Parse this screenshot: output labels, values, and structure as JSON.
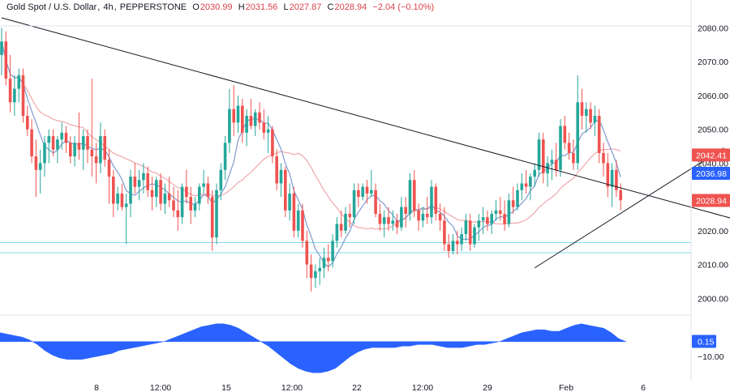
{
  "header": {
    "symbol": "Gold Spot / U.S. Dollar",
    "interval": "4h",
    "source": "PEPPERSTONE",
    "open_label": "O",
    "open": "2030.99",
    "high_label": "H",
    "high": "2031.56",
    "low_label": "L",
    "low": "2027.87",
    "close_label": "C",
    "close": "2028.94",
    "change": "−2.04 (−0.10%)"
  },
  "colors": {
    "up": "#26a69a",
    "down": "#ef5350",
    "slow_ma": "#f0a7ac",
    "fast_ma": "#7e9bcf",
    "oscillator": "#2962ff",
    "trendline": "#131722",
    "support_zone": "#80deea"
  },
  "chart_data": [
    {
      "type": "candlestick",
      "symbol": "XAUUSD",
      "timeframe": "4h",
      "y_axis": {
        "ticks": [
          2000,
          2010,
          2020,
          2030,
          2040,
          2050,
          2060,
          2070,
          2080
        ],
        "ylim": [
          1996,
          2083
        ]
      },
      "x_axis": {
        "ticks": [
          "8",
          "12:00",
          "15",
          "12:00",
          "22",
          "12:00",
          "29",
          "Feb",
          "6"
        ]
      },
      "price_labels": [
        {
          "label": "2042.41",
          "value": 2042.41,
          "color": "#ef5350"
        },
        {
          "label": "2036.98",
          "value": 2036.98,
          "color": "#2962ff"
        },
        {
          "label": "2028.94",
          "value": 2028.94,
          "color": "#ef5350"
        }
      ],
      "support_lines": [
        2016.5,
        2013.5
      ],
      "trendlines": [
        {
          "name": "descending",
          "from": [
            0,
            2083
          ],
          "to": [
            186,
            2018
          ]
        },
        {
          "name": "ascending",
          "from": [
            124,
            2009
          ],
          "to": [
            168,
            2044.5
          ]
        }
      ],
      "candles_ohlc": [
        [
          2072,
          2080,
          2066,
          2076
        ],
        [
          2076,
          2079,
          2063,
          2065
        ],
        [
          2065,
          2072,
          2055,
          2058
        ],
        [
          2058,
          2066,
          2054,
          2062
        ],
        [
          2062,
          2068,
          2058,
          2066
        ],
        [
          2066,
          2068,
          2052,
          2054
        ],
        [
          2054,
          2057,
          2048,
          2050
        ],
        [
          2050,
          2053,
          2040,
          2042
        ],
        [
          2042,
          2047,
          2030,
          2038
        ],
        [
          2038,
          2044,
          2031,
          2040
        ],
        [
          2040,
          2048,
          2036,
          2046
        ],
        [
          2046,
          2050,
          2040,
          2048
        ],
        [
          2048,
          2050,
          2042,
          2044
        ],
        [
          2044,
          2048,
          2040,
          2047
        ],
        [
          2047,
          2052,
          2044,
          2049
        ],
        [
          2049,
          2051,
          2043,
          2046
        ],
        [
          2046,
          2048,
          2040,
          2042
        ],
        [
          2042,
          2048,
          2039,
          2046
        ],
        [
          2046,
          2055,
          2041,
          2044
        ],
        [
          2044,
          2050,
          2038,
          2048
        ],
        [
          2048,
          2050,
          2040,
          2044
        ],
        [
          2044,
          2065,
          2036,
          2042
        ],
        [
          2042,
          2046,
          2034,
          2040
        ],
        [
          2040,
          2052,
          2037,
          2048
        ],
        [
          2048,
          2050,
          2039,
          2041
        ],
        [
          2041,
          2044,
          2028,
          2036
        ],
        [
          2036,
          2038,
          2024,
          2028
        ],
        [
          2028,
          2033,
          2026,
          2031
        ],
        [
          2031,
          2034,
          2026,
          2027
        ],
        [
          2027,
          2031,
          2016,
          2028
        ],
        [
          2028,
          2038,
          2024,
          2036
        ],
        [
          2036,
          2040,
          2031,
          2033
        ],
        [
          2033,
          2038,
          2029,
          2035
        ],
        [
          2035,
          2040,
          2031,
          2037
        ],
        [
          2037,
          2039,
          2030,
          2032
        ],
        [
          2032,
          2036,
          2026,
          2030
        ],
        [
          2030,
          2036,
          2027,
          2035
        ],
        [
          2035,
          2037,
          2026,
          2028
        ],
        [
          2028,
          2034,
          2025,
          2031
        ],
        [
          2031,
          2036,
          2027,
          2029
        ],
        [
          2029,
          2033,
          2024,
          2026
        ],
        [
          2026,
          2032,
          2020,
          2024
        ],
        [
          2024,
          2034,
          2022,
          2033
        ],
        [
          2033,
          2038,
          2028,
          2030
        ],
        [
          2030,
          2033,
          2022,
          2026
        ],
        [
          2026,
          2030,
          2024,
          2028
        ],
        [
          2028,
          2034,
          2026,
          2033
        ],
        [
          2033,
          2038,
          2031,
          2034
        ],
        [
          2034,
          2036,
          2028,
          2030
        ],
        [
          2030,
          2032,
          2014,
          2018
        ],
        [
          2018,
          2034,
          2016,
          2032
        ],
        [
          2032,
          2040,
          2029,
          2038
        ],
        [
          2038,
          2048,
          2035,
          2046
        ],
        [
          2046,
          2062,
          2043,
          2056
        ],
        [
          2056,
          2063,
          2048,
          2052
        ],
        [
          2052,
          2060,
          2049,
          2057
        ],
        [
          2057,
          2059,
          2046,
          2049
        ],
        [
          2049,
          2056,
          2045,
          2054
        ],
        [
          2054,
          2059,
          2050,
          2051
        ],
        [
          2051,
          2056,
          2048,
          2055
        ],
        [
          2055,
          2058,
          2050,
          2052
        ],
        [
          2052,
          2056,
          2047,
          2049
        ],
        [
          2049,
          2054,
          2043,
          2050
        ],
        [
          2050,
          2051,
          2040,
          2042
        ],
        [
          2042,
          2044,
          2032,
          2034
        ],
        [
          2034,
          2040,
          2030,
          2038
        ],
        [
          2038,
          2039,
          2024,
          2026
        ],
        [
          2026,
          2034,
          2023,
          2031
        ],
        [
          2031,
          2033,
          2018,
          2020
        ],
        [
          2020,
          2028,
          2018,
          2026
        ],
        [
          2026,
          2028,
          2015,
          2017
        ],
        [
          2017,
          2020,
          2006,
          2010
        ],
        [
          2010,
          2013,
          2002,
          2006
        ],
        [
          2006,
          2010,
          2003,
          2008
        ],
        [
          2008,
          2012,
          2004,
          2009
        ],
        [
          2009,
          2015,
          2006,
          2012
        ],
        [
          2012,
          2016,
          2008,
          2011
        ],
        [
          2011,
          2019,
          2009,
          2017
        ],
        [
          2017,
          2024,
          2015,
          2022
        ],
        [
          2022,
          2026,
          2018,
          2020
        ],
        [
          2020,
          2027,
          2019,
          2025
        ],
        [
          2025,
          2028,
          2021,
          2024
        ],
        [
          2024,
          2034,
          2022,
          2032
        ],
        [
          2032,
          2034,
          2027,
          2030
        ],
        [
          2030,
          2034,
          2029,
          2033
        ],
        [
          2033,
          2035,
          2028,
          2031
        ],
        [
          2031,
          2038,
          2030,
          2032
        ],
        [
          2032,
          2034,
          2024,
          2025
        ],
        [
          2025,
          2028,
          2020,
          2022
        ],
        [
          2022,
          2026,
          2018,
          2024
        ],
        [
          2024,
          2027,
          2020,
          2022
        ],
        [
          2022,
          2026,
          2020,
          2023
        ],
        [
          2023,
          2025,
          2019,
          2021
        ],
        [
          2021,
          2030,
          2020,
          2027
        ],
        [
          2027,
          2030,
          2021,
          2025
        ],
        [
          2025,
          2037,
          2023,
          2035
        ],
        [
          2035,
          2038,
          2024,
          2026
        ],
        [
          2026,
          2028,
          2020,
          2023
        ],
        [
          2023,
          2027,
          2021,
          2025
        ],
        [
          2025,
          2030,
          2022,
          2024
        ],
        [
          2024,
          2035,
          2022,
          2033
        ],
        [
          2033,
          2034,
          2023,
          2025
        ],
        [
          2025,
          2028,
          2020,
          2023
        ],
        [
          2023,
          2027,
          2014,
          2016
        ],
        [
          2016,
          2019,
          2012,
          2014
        ],
        [
          2014,
          2019,
          2013,
          2017
        ],
        [
          2017,
          2020,
          2013,
          2016
        ],
        [
          2016,
          2021,
          2014,
          2019
        ],
        [
          2019,
          2025,
          2017,
          2023
        ],
        [
          2023,
          2025,
          2014,
          2016
        ],
        [
          2016,
          2022,
          2015,
          2021
        ],
        [
          2021,
          2025,
          2017,
          2023
        ],
        [
          2023,
          2027,
          2019,
          2024
        ],
        [
          2024,
          2026,
          2020,
          2022
        ],
        [
          2022,
          2026,
          2019,
          2025
        ],
        [
          2025,
          2029,
          2023,
          2026
        ],
        [
          2026,
          2030,
          2023,
          2025
        ],
        [
          2025,
          2029,
          2020,
          2022
        ],
        [
          2022,
          2031,
          2021,
          2029
        ],
        [
          2029,
          2033,
          2025,
          2027
        ],
        [
          2027,
          2034,
          2026,
          2032
        ],
        [
          2032,
          2037,
          2029,
          2034
        ],
        [
          2034,
          2038,
          2031,
          2033
        ],
        [
          2033,
          2037,
          2029,
          2036
        ],
        [
          2036,
          2040,
          2033,
          2038
        ],
        [
          2038,
          2049,
          2036,
          2047
        ],
        [
          2047,
          2049,
          2034,
          2037
        ],
        [
          2037,
          2042,
          2033,
          2040
        ],
        [
          2040,
          2044,
          2035,
          2041
        ],
        [
          2041,
          2046,
          2036,
          2038
        ],
        [
          2038,
          2053,
          2036,
          2051
        ],
        [
          2051,
          2054,
          2044,
          2046
        ],
        [
          2046,
          2049,
          2041,
          2043
        ],
        [
          2043,
          2047,
          2038,
          2040
        ],
        [
          2040,
          2066,
          2038,
          2058
        ],
        [
          2058,
          2062,
          2050,
          2054
        ],
        [
          2054,
          2058,
          2049,
          2056
        ],
        [
          2056,
          2058,
          2050,
          2052
        ],
        [
          2052,
          2057,
          2048,
          2054
        ],
        [
          2054,
          2056,
          2040,
          2043
        ],
        [
          2043,
          2046,
          2036,
          2040
        ],
        [
          2040,
          2043,
          2030,
          2033
        ],
        [
          2033,
          2040,
          2027,
          2038
        ],
        [
          2038,
          2041,
          2030,
          2032
        ],
        [
          2032,
          2034,
          2026,
          2029
        ]
      ]
    },
    {
      "type": "area",
      "name": "oscillator",
      "value_labels": [
        {
          "label": "0.15",
          "value": 0.15,
          "color": "#2962ff"
        },
        {
          "label": "−10.00",
          "value": -10.0
        }
      ],
      "values": [
        6,
        5,
        4,
        3,
        1,
        -2,
        -6,
        -9,
        -11,
        -12,
        -12,
        -12,
        -11,
        -10,
        -9,
        -8,
        -6,
        -5,
        -4,
        -3,
        -2,
        -1,
        0,
        2,
        4,
        6,
        8,
        10,
        11,
        12,
        12,
        11,
        9,
        6,
        3,
        0,
        -3,
        -7,
        -11,
        -15,
        -18,
        -20,
        -21,
        -21,
        -20,
        -18,
        -14,
        -10,
        -7,
        -5,
        -4,
        -4,
        -4,
        -4,
        -3,
        -3,
        -2,
        -2,
        -2,
        -3,
        -4,
        -4,
        -4,
        -3,
        -2,
        -2,
        -1,
        0,
        2,
        4,
        6,
        7,
        8,
        8,
        7,
        7,
        9,
        11,
        12,
        11,
        10,
        9,
        6,
        2,
        0
      ],
      "ylim": [
        -22,
        13
      ]
    }
  ]
}
